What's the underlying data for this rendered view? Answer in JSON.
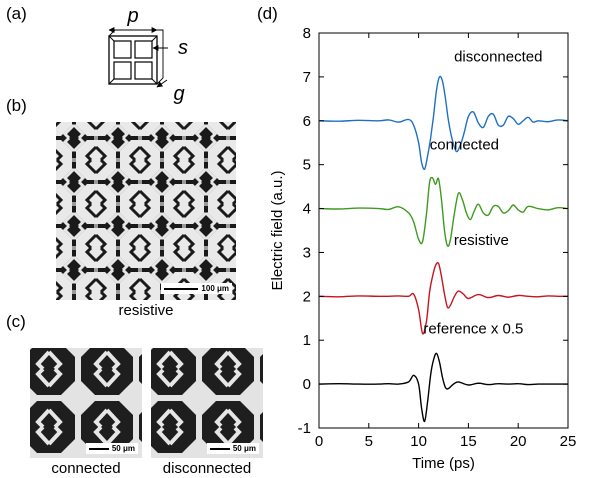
{
  "panels": {
    "a": {
      "label": "(a)",
      "symbols": {
        "period": "p",
        "spacing": "s",
        "gap": "g"
      }
    },
    "b": {
      "label": "(b)",
      "scalebar": "100 μm",
      "caption": "resistive"
    },
    "c": {
      "label": "(c)",
      "left": {
        "scalebar": "50 μm",
        "caption": "connected"
      },
      "right": {
        "scalebar": "50 μm",
        "caption": "disconnected"
      }
    },
    "d": {
      "label": "(d)"
    }
  },
  "colors": {
    "disconnected": "#1f6fc5",
    "connected": "#3f9a1f",
    "resistive": "#c8141e",
    "reference": "#000000"
  },
  "chart_data": {
    "type": "line",
    "xlabel": "Time (ps)",
    "ylabel": "Electric field (a.u.)",
    "xlim": [
      0,
      25
    ],
    "ylim": [
      -1,
      8
    ],
    "xticks": [
      "0",
      "5",
      "10",
      "15",
      "20",
      "25"
    ],
    "yticks": [
      "-1",
      "0",
      "1",
      "2",
      "3",
      "4",
      "5",
      "6",
      "7",
      "8"
    ],
    "grid": false,
    "series": [
      {
        "name": "disconnected",
        "color": "#1f6fc5",
        "x": [
          0,
          2,
          4,
          6,
          7,
          8,
          9,
          9.5,
          10,
          10.3,
          10.6,
          10.9,
          11.2,
          11.5,
          11.8,
          12.1,
          12.4,
          12.7,
          13.0,
          13.4,
          13.8,
          14.2,
          14.6,
          15.0,
          15.5,
          16,
          16.5,
          17,
          17.5,
          18,
          18.5,
          19,
          19.5,
          20,
          20.5,
          21,
          21.5,
          22,
          23,
          24,
          25
        ],
        "y": [
          6.0,
          5.99,
          6.01,
          6.0,
          6.02,
          5.97,
          6.03,
          5.9,
          5.5,
          5.05,
          4.9,
          5.2,
          5.6,
          6.1,
          6.7,
          7.0,
          6.9,
          6.5,
          6.0,
          5.55,
          5.3,
          5.45,
          5.75,
          6.1,
          6.2,
          5.95,
          5.85,
          6.1,
          6.15,
          5.9,
          5.9,
          6.1,
          6.05,
          5.92,
          6.0,
          6.08,
          5.97,
          6.0,
          5.98,
          6.02,
          6.0
        ]
      },
      {
        "name": "connected",
        "color": "#3f9a1f",
        "x": [
          0,
          2,
          4,
          6,
          7,
          8,
          9,
          9.5,
          10,
          10.4,
          10.8,
          11.1,
          11.4,
          11.7,
          12.0,
          12.3,
          12.6,
          12.9,
          13.2,
          13.6,
          14.0,
          14.4,
          14.8,
          15.2,
          15.6,
          16,
          16.5,
          17,
          17.5,
          18,
          18.5,
          19,
          19.5,
          20,
          20.5,
          21,
          22,
          23,
          24,
          25
        ],
        "y": [
          4.0,
          3.99,
          4.01,
          4.0,
          3.98,
          4.04,
          3.9,
          3.7,
          3.3,
          3.25,
          3.9,
          4.6,
          4.7,
          4.55,
          4.68,
          4.2,
          3.5,
          3.15,
          3.3,
          3.9,
          4.35,
          4.2,
          3.9,
          3.75,
          3.95,
          4.1,
          3.9,
          3.85,
          4.05,
          4.05,
          3.9,
          3.95,
          4.08,
          3.97,
          3.92,
          4.05,
          4.0,
          3.97,
          4.02,
          4.0
        ]
      },
      {
        "name": "resistive",
        "color": "#c8141e",
        "x": [
          0,
          2,
          4,
          6,
          7,
          8,
          9,
          9.5,
          10,
          10.4,
          10.8,
          11.1,
          11.4,
          11.7,
          12.0,
          12.3,
          12.6,
          12.9,
          13.2,
          13.6,
          14.0,
          14.5,
          15,
          16,
          17,
          18,
          19,
          20,
          21,
          22,
          23,
          24,
          25
        ],
        "y": [
          2.0,
          1.99,
          2.01,
          2.0,
          2.0,
          2.01,
          2.0,
          2.05,
          1.7,
          1.15,
          1.45,
          2.1,
          2.45,
          2.7,
          2.75,
          2.45,
          2.05,
          1.75,
          1.8,
          2.0,
          2.12,
          2.05,
          1.95,
          2.04,
          1.97,
          2.02,
          1.98,
          2.02,
          2.0,
          1.99,
          2.01,
          2.0,
          2.0
        ]
      },
      {
        "name": "reference x 0.5",
        "color": "#000000",
        "x": [
          0,
          2,
          4,
          6,
          7,
          8,
          9,
          9.5,
          10,
          10.3,
          10.6,
          10.9,
          11.2,
          11.5,
          11.8,
          12.1,
          12.4,
          12.7,
          13.0,
          13.5,
          14,
          15,
          16,
          17,
          18,
          19,
          20,
          21,
          22,
          23,
          24,
          25
        ],
        "y": [
          0.0,
          0.01,
          0.0,
          0.0,
          0.01,
          0.0,
          0.05,
          0.2,
          0.0,
          -0.55,
          -0.85,
          -0.4,
          0.2,
          0.55,
          0.7,
          0.5,
          0.15,
          -0.08,
          -0.1,
          0.0,
          0.05,
          -0.02,
          0.02,
          -0.01,
          0.01,
          0.0,
          0.01,
          -0.01,
          0.0,
          0.0,
          0.0,
          0.0
        ]
      }
    ],
    "annotations": [
      "disconnected",
      "connected",
      "resistive",
      "reference x 0.5"
    ]
  }
}
